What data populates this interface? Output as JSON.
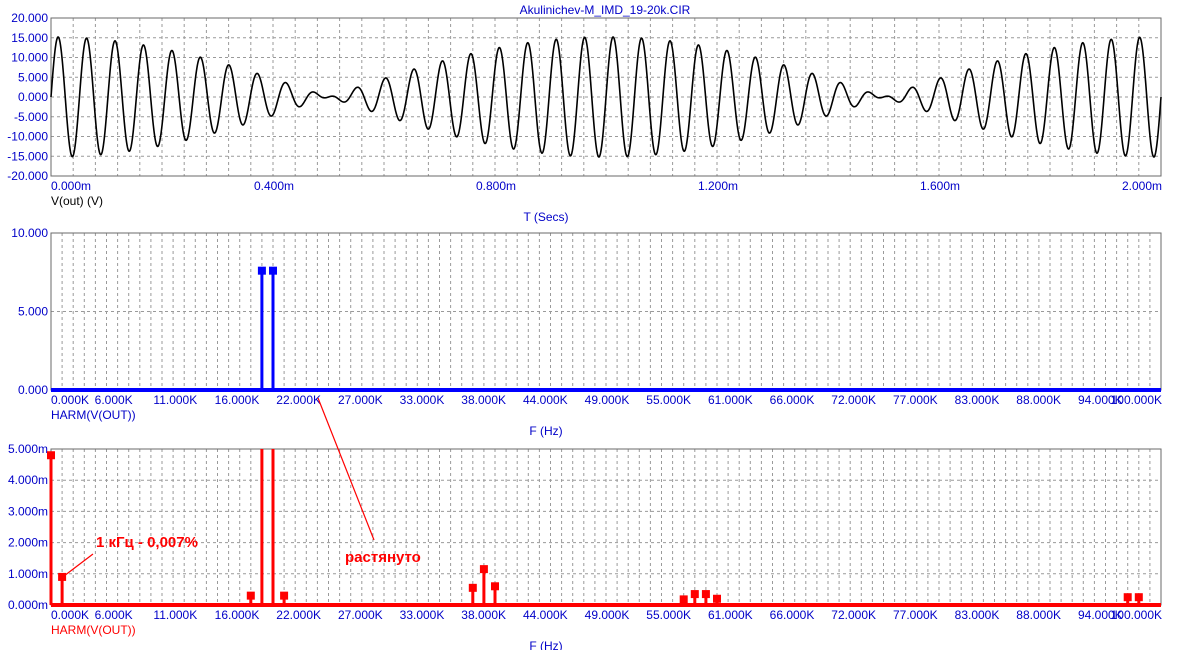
{
  "window_title": "Akulinichev-M_IMD_19-20k.CIR",
  "colors": {
    "axis_text": "#0000c8",
    "trace_time": "#000000",
    "trace_spectrum": "#0000ff",
    "trace_spectrum_zoom": "#ff0000",
    "grid": "#9a9a9a",
    "annotation": "#ff0000"
  },
  "chart_data": [
    {
      "type": "line",
      "title": "Akulinichev-M_IMD_19-20k.CIR",
      "xlabel": "T (Secs)",
      "ylabel": "V(out) (V)",
      "series_label": "V(out) (V)",
      "x_tick_labels": [
        "0.000m",
        "0.400m",
        "0.800m",
        "1.200m",
        "1.600m",
        "2.000m"
      ],
      "y_tick_labels": [
        "20.000",
        "15.000",
        "10.000",
        "5.000",
        "0.000",
        "-5.000",
        "-10.000",
        "-15.000",
        "-20.000"
      ],
      "xlim": [
        0,
        2.0
      ],
      "x_unit": "ms",
      "ylim": [
        -20,
        20
      ],
      "grid": true,
      "signal": {
        "tones_hz": [
          19000,
          20000
        ],
        "amplitude_each_v": 7.6,
        "peak_envelope_v": 15.2
      }
    },
    {
      "type": "bar",
      "xlabel": "F (Hz)",
      "series_label": "HARM(V(OUT))",
      "x_tick_labels": [
        "0.000K",
        "6.000K",
        "11.000K",
        "16.000K",
        "22.000K",
        "27.000K",
        "33.000K",
        "38.000K",
        "44.000K",
        "49.000K",
        "55.000K",
        "61.000K",
        "66.000K",
        "72.000K",
        "77.000K",
        "83.000K",
        "88.000K",
        "94.000K",
        "100.000K"
      ],
      "y_tick_labels": [
        "10.000",
        "5.000",
        "0.000"
      ],
      "xlim": [
        0,
        100000
      ],
      "ylim": [
        0,
        10
      ],
      "grid": true,
      "x": [
        19000,
        20000
      ],
      "values": [
        7.6,
        7.6
      ]
    },
    {
      "type": "bar",
      "xlabel": "F (Hz)",
      "series_label": "HARM(V(OUT))",
      "x_tick_labels": [
        "0.000K",
        "6.000K",
        "11.000K",
        "16.000K",
        "22.000K",
        "27.000K",
        "33.000K",
        "38.000K",
        "44.000K",
        "49.000K",
        "55.000K",
        "61.000K",
        "66.000K",
        "72.000K",
        "77.000K",
        "83.000K",
        "88.000K",
        "94.000K",
        "100.000K"
      ],
      "y_tick_labels": [
        "5.000m",
        "4.000m",
        "3.000m",
        "2.000m",
        "1.000m",
        "0.000m"
      ],
      "xlim": [
        0,
        100000
      ],
      "ylim": [
        0,
        5.0
      ],
      "y_unit": "mV",
      "grid": true,
      "x": [
        0,
        1000,
        18000,
        19000,
        20000,
        21000,
        38000,
        39000,
        40000,
        57000,
        58000,
        59000,
        60000,
        97000,
        98000
      ],
      "values": [
        4.8,
        0.9,
        0.3,
        5.0,
        5.0,
        0.3,
        0.55,
        1.15,
        0.6,
        0.18,
        0.35,
        0.35,
        0.2,
        0.25,
        0.25
      ],
      "annotations": [
        {
          "text": "1 кГц - 0,007%",
          "x": 1000,
          "y": 0.9
        },
        {
          "text": "растянуто"
        }
      ]
    }
  ]
}
